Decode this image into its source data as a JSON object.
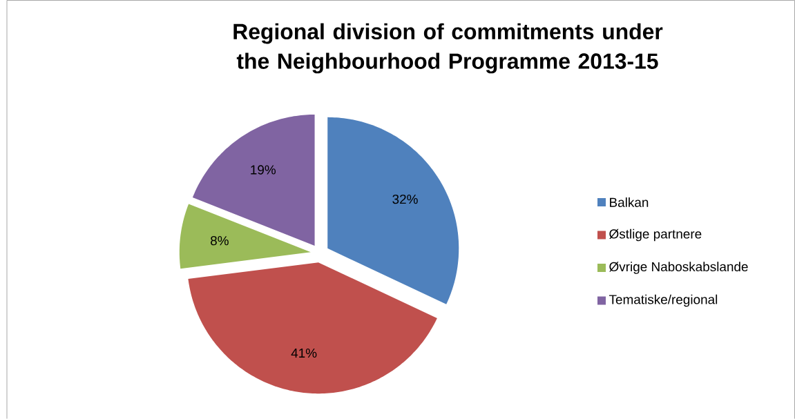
{
  "chart_data": {
    "type": "pie",
    "title": "Regional division of commitments under the Neighbourhood Programme 2013-15",
    "categories": [
      "Balkan",
      "Østlige partnere",
      "Øvrige Naboskabslande",
      "Tematiske/regional"
    ],
    "values": [
      32,
      41,
      8,
      19
    ],
    "colors": [
      "#4f81bd",
      "#c0504d",
      "#9bbb59",
      "#8064a2"
    ],
    "value_labels": [
      "32%",
      "41%",
      "8%",
      "19%"
    ],
    "legend": "right"
  }
}
